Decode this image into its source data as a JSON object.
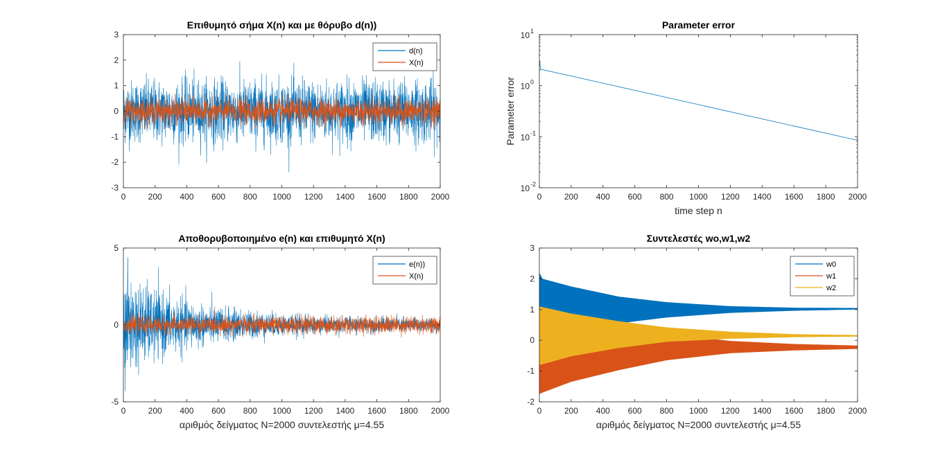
{
  "colors": {
    "blue": "#0072BD",
    "orange": "#D95319",
    "yellow": "#EDB120"
  },
  "chart_data": [
    {
      "type": "line",
      "title": "Επιθυμητό σήμα X(n) και με θόρυβο d(n))",
      "xlabel": "",
      "ylabel": "",
      "xlim": [
        0,
        2000
      ],
      "ylim": [
        -3,
        3
      ],
      "xticks": [
        "0",
        "200",
        "400",
        "600",
        "800",
        "1000",
        "1200",
        "1400",
        "1600",
        "1800",
        "2000"
      ],
      "yticks": [
        "-3",
        "-2",
        "-1",
        "0",
        "1",
        "2",
        "3"
      ],
      "legend": "top-right",
      "series": [
        {
          "name": "d(n)",
          "kind": "noise",
          "mean": 0,
          "std": 0.6,
          "min": -2.4,
          "max": 2.3
        },
        {
          "name": "X(n)",
          "kind": "noise",
          "mean": 0,
          "std": 0.25,
          "min": -0.7,
          "max": 0.7
        }
      ]
    },
    {
      "type": "line",
      "title": "Parameter error",
      "xlabel": "time step n",
      "ylabel": "Parameter error",
      "xlim": [
        0,
        2000
      ],
      "ylim": [
        0.01,
        10
      ],
      "yscale": "log",
      "xticks": [
        "0",
        "200",
        "400",
        "600",
        "800",
        "1000",
        "1200",
        "1400",
        "1600",
        "1800",
        "2000"
      ],
      "yticks": [
        {
          "base": "10",
          "exp": "1"
        },
        {
          "base": "10",
          "exp": "0"
        },
        {
          "base": "10",
          "exp": "-1"
        },
        {
          "base": "10",
          "exp": "-2"
        }
      ],
      "series": [
        {
          "x": [
            0,
            2,
            8,
            2000
          ],
          "y": [
            2.3,
            3.0,
            2.1,
            0.085
          ]
        }
      ]
    },
    {
      "type": "line",
      "title": "Αποθορυβοποιημένο e(n) και επιθυμητό X(n)",
      "xlabel": "αριθμός δείγματος N=2000 συντελεστής μ=4.55",
      "ylabel": "",
      "xlim": [
        0,
        2000
      ],
      "ylim": [
        -5,
        5
      ],
      "xticks": [
        "0",
        "200",
        "400",
        "600",
        "800",
        "1000",
        "1200",
        "1400",
        "1600",
        "1800",
        "2000"
      ],
      "yticks": [
        "-5",
        "0",
        "5"
      ],
      "legend": "top-right",
      "series": [
        {
          "name": "e(n))",
          "kind": "decaying-noise",
          "std_start": 1.6,
          "std_end": 0.2,
          "tau": 450
        },
        {
          "name": "X(n)",
          "kind": "noise",
          "mean": 0,
          "std": 0.28
        }
      ]
    },
    {
      "type": "area",
      "title": "Συντελεστές wo,w1,w2",
      "xlabel": "αριθμός δείγματος N=2000 συντελεστής μ=4.55",
      "ylabel": "",
      "xlim": [
        0,
        2000
      ],
      "ylim": [
        -2,
        3
      ],
      "xticks": [
        "0",
        "200",
        "400",
        "600",
        "800",
        "1000",
        "1200",
        "1400",
        "1600",
        "1800",
        "2000"
      ],
      "yticks": [
        "-2",
        "-1",
        "0",
        "1",
        "2",
        "3"
      ],
      "legend": "top-right",
      "series": [
        {
          "name": "w0",
          "x": [
            0,
            20,
            200,
            500,
            800,
            1200,
            1600,
            2000
          ],
          "upper": [
            2.2,
            2.0,
            1.75,
            1.42,
            1.24,
            1.11,
            1.06,
            1.05
          ],
          "lower": [
            0.95,
            1.0,
            0.78,
            0.55,
            0.74,
            0.89,
            0.96,
            1.0
          ]
        },
        {
          "name": "w1",
          "x": [
            0,
            20,
            200,
            500,
            800,
            1200,
            1600,
            2000
          ],
          "upper": [
            1.3,
            1.25,
            0.9,
            0.5,
            0.2,
            -0.02,
            -0.12,
            -0.17
          ],
          "lower": [
            -1.75,
            -1.7,
            -1.35,
            -0.97,
            -0.65,
            -0.42,
            -0.33,
            -0.28
          ]
        },
        {
          "name": "w2",
          "x": [
            0,
            20,
            200,
            500,
            800,
            1200,
            1600,
            2000
          ],
          "upper": [
            1.1,
            1.08,
            0.87,
            0.62,
            0.42,
            0.28,
            0.2,
            0.17
          ],
          "lower": [
            -0.8,
            -0.78,
            -0.52,
            -0.25,
            -0.05,
            0.05,
            0.1,
            0.12
          ]
        }
      ]
    }
  ]
}
